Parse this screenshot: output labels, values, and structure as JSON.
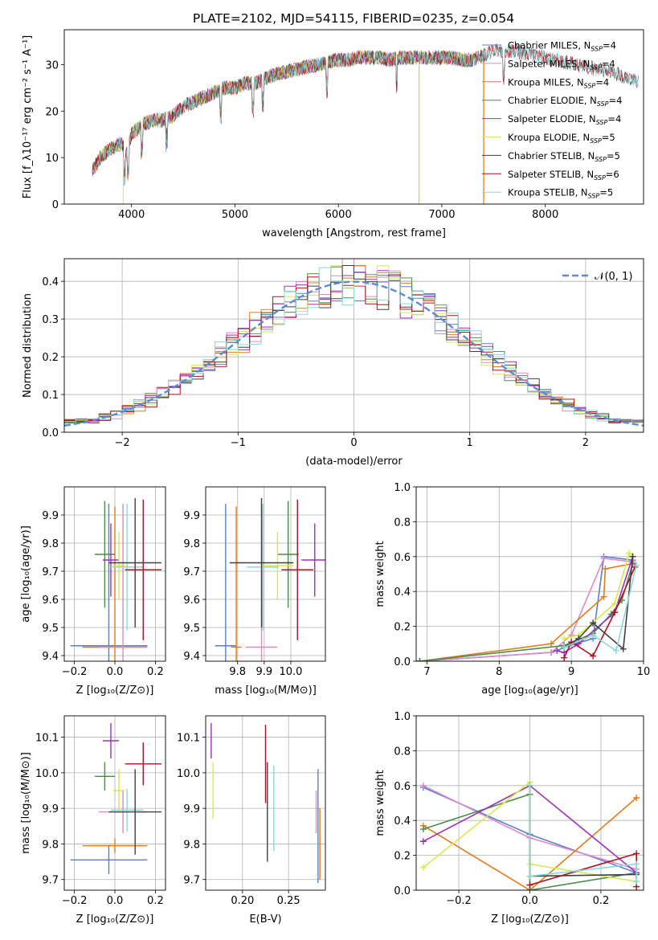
{
  "chart_data": [
    {
      "type": "line",
      "title": "PLATE=2102, MJD=54115, FIBERID=0235, z=0.054",
      "xlabel": "wavelength [Angstrom, rest frame]",
      "ylabel": "Flux [f_λ10⁻¹⁷ erg cm⁻² s⁻¹ A⁻¹]",
      "xlim": [
        3350,
        8950
      ],
      "ylim": [
        0,
        37.5
      ],
      "xticks": [
        4000,
        5000,
        6000,
        7000,
        8000
      ],
      "yticks": [
        0,
        10,
        20,
        30
      ],
      "legend_position": "right",
      "spectrum_trend": {
        "x": [
          3620,
          3700,
          3800,
          3900,
          3950,
          4000,
          4100,
          4200,
          4300,
          4400,
          4500,
          4600,
          4700,
          4800,
          4900,
          5000,
          5100,
          5200,
          5300,
          5400,
          5500,
          5600,
          5700,
          5800,
          5900,
          6000,
          6100,
          6200,
          6300,
          6400,
          6500,
          6600,
          6700,
          6800,
          6900,
          7000,
          7100,
          7200,
          7300,
          7400,
          7500,
          7600,
          7700,
          7800,
          7900,
          8000,
          8100,
          8200,
          8300,
          8400,
          8500,
          8600,
          8700,
          8800,
          8900
        ],
        "y": [
          7,
          10,
          12,
          13,
          11,
          15,
          17,
          18,
          18,
          19,
          21,
          22,
          23,
          24,
          25,
          25,
          26,
          26,
          27,
          28,
          28.5,
          29,
          29.5,
          30,
          30.5,
          31,
          31,
          31.5,
          31.5,
          31.5,
          31,
          31.5,
          31.5,
          31.5,
          31.5,
          31.5,
          31.5,
          31,
          31,
          32,
          33,
          33,
          33,
          32.5,
          32,
          31.5,
          31,
          30.5,
          30,
          29.5,
          29,
          28.5,
          28,
          27,
          26.5
        ]
      },
      "series": [
        {
          "name": "Chabrier MILES",
          "nssp": 4,
          "color": "#5b7fd0"
        },
        {
          "name": "Salpeter MILES",
          "nssp": 4,
          "color": "#dd88c8"
        },
        {
          "name": "Kroupa MILES",
          "nssp": 4,
          "color": "#e07b1a"
        },
        {
          "name": "Chabrier ELODIE",
          "nssp": 4,
          "color": "#4a8c4a"
        },
        {
          "name": "Salpeter ELODIE",
          "nssp": 4,
          "color": "#9c30b8"
        },
        {
          "name": "Kroupa ELODIE",
          "nssp": 5,
          "color": "#d8e84a"
        },
        {
          "name": "Chabrier STELIB",
          "nssp": 5,
          "color": "#404040"
        },
        {
          "name": "Salpeter STELIB",
          "nssp": 6,
          "color": "#b01020"
        },
        {
          "name": "Kroupa STELIB",
          "nssp": 5,
          "color": "#8ad8d8"
        }
      ]
    },
    {
      "type": "step",
      "xlabel": "(data-model)/error",
      "ylabel": "Normed distribution",
      "xlim": [
        -2.5,
        2.5
      ],
      "ylim": [
        0,
        0.46
      ],
      "xticks": [
        -2,
        -1,
        0,
        1,
        2
      ],
      "yticks": [
        0.0,
        0.1,
        0.2,
        0.3,
        0.4
      ],
      "grid": true,
      "legend": {
        "label": "𝒩(0, 1)",
        "position": "upper right"
      },
      "reference_curve": "standard normal density"
    },
    {
      "type": "errorbar",
      "xlabel": "Z [log₁₀(Z/Z⊙)]",
      "ylabel": "age  [log₁₀(age/yr)]",
      "xlim": [
        -0.25,
        0.25
      ],
      "ylim": [
        9.38,
        10.0
      ],
      "xticks": [
        -0.2,
        0.0,
        0.2
      ],
      "yticks": [
        9.4,
        9.5,
        9.6,
        9.7,
        9.8,
        9.9
      ],
      "grid": true,
      "points": [
        {
          "series": "Chabrier MILES",
          "x": -0.03,
          "y": 9.435,
          "xerr": 0.19,
          "yerr": 0.505
        },
        {
          "series": "Kroupa MILES",
          "x": 0.0,
          "y": 9.43,
          "xerr": 0.16,
          "yerr": 0.5
        },
        {
          "series": "Salpeter MILES",
          "x": 0.04,
          "y": 9.43,
          "xerr": 0.12,
          "yerr": 0.51
        },
        {
          "series": "Chabrier ELODIE",
          "x": -0.05,
          "y": 9.76,
          "xerr": 0.05,
          "yerr": 0.19
        },
        {
          "series": "Salpeter ELODIE",
          "x": -0.02,
          "y": 9.74,
          "xerr": 0.04,
          "yerr": 0.13
        },
        {
          "series": "Kroupa ELODIE",
          "x": 0.02,
          "y": 9.72,
          "xerr": 0.03,
          "yerr": 0.12
        },
        {
          "series": "Kroupa STELIB",
          "x": 0.06,
          "y": 9.715,
          "xerr": 0.08,
          "yerr": 0.225
        },
        {
          "series": "Chabrier STELIB",
          "x": 0.1,
          "y": 9.73,
          "xerr": 0.13,
          "yerr": 0.23
        },
        {
          "series": "Salpeter STELIB",
          "x": 0.14,
          "y": 9.705,
          "xerr": 0.09,
          "yerr": 0.25
        }
      ]
    },
    {
      "type": "errorbar",
      "xlabel": "mass [log₁₀(M/M⊙)]",
      "ylabel": "",
      "xlim": [
        9.68,
        10.13
      ],
      "ylim": [
        9.38,
        10.0
      ],
      "xticks": [
        9.8,
        9.9,
        10.0
      ],
      "yticks": [
        9.4,
        9.5,
        9.6,
        9.7,
        9.8,
        9.9
      ],
      "grid": true,
      "points": [
        {
          "series": "Chabrier MILES",
          "x": 9.755,
          "y": 9.435,
          "xerr": 0.04,
          "yerr": 0.505
        },
        {
          "series": "Kroupa MILES",
          "x": 9.795,
          "y": 9.43,
          "xerr": 0.02,
          "yerr": 0.5
        },
        {
          "series": "Salpeter MILES",
          "x": 9.89,
          "y": 9.43,
          "xerr": 0.06,
          "yerr": 0.51
        },
        {
          "series": "Chabrier ELODIE",
          "x": 9.99,
          "y": 9.76,
          "xerr": 0.04,
          "yerr": 0.19
        },
        {
          "series": "Salpeter ELODIE",
          "x": 10.09,
          "y": 9.74,
          "xerr": 0.05,
          "yerr": 0.13
        },
        {
          "series": "Kroupa ELODIE",
          "x": 9.95,
          "y": 9.72,
          "xerr": 0.06,
          "yerr": 0.12
        },
        {
          "series": "Kroupa STELIB",
          "x": 9.895,
          "y": 9.715,
          "xerr": 0.06,
          "yerr": 0.225
        },
        {
          "series": "Chabrier STELIB",
          "x": 9.89,
          "y": 9.73,
          "xerr": 0.12,
          "yerr": 0.23
        },
        {
          "series": "Salpeter STELIB",
          "x": 10.025,
          "y": 9.705,
          "xerr": 0.06,
          "yerr": 0.25
        }
      ]
    },
    {
      "type": "line",
      "xlabel": "age  [log₁₀(age/yr)]",
      "ylabel": "mass weight",
      "xlim": [
        6.85,
        10.0
      ],
      "ylim": [
        0,
        1.0
      ],
      "xticks": [
        7,
        8,
        9,
        10
      ],
      "yticks": [
        0.0,
        0.2,
        0.4,
        0.6,
        0.8,
        1.0
      ],
      "grid": true,
      "series": [
        {
          "name": "Chabrier MILES",
          "x": [
            6.9,
            8.72,
            9.05,
            9.3,
            9.45,
            9.85
          ],
          "y": [
            0.0,
            0.05,
            0.1,
            0.13,
            0.6,
            0.58
          ]
        },
        {
          "name": "Salpeter MILES",
          "x": [
            6.9,
            8.72,
            9.0,
            9.45,
            9.85
          ],
          "y": [
            0.0,
            0.05,
            0.15,
            0.59,
            0.57
          ]
        },
        {
          "name": "Kroupa MILES",
          "x": [
            6.9,
            8.72,
            9.45,
            9.47,
            9.85
          ],
          "y": [
            0.0,
            0.1,
            0.37,
            0.53,
            0.56
          ]
        },
        {
          "name": "Chabrier ELODIE",
          "x": [
            6.9,
            8.9,
            9.3,
            9.55,
            9.7,
            9.85
          ],
          "y": [
            0.0,
            0.09,
            0.16,
            0.27,
            0.35,
            0.56
          ]
        },
        {
          "name": "Salpeter ELODIE",
          "x": [
            8.8,
            8.9,
            9.1,
            9.6,
            9.85
          ],
          "y": [
            0.06,
            0.05,
            0.1,
            0.28,
            0.6
          ]
        },
        {
          "name": "Kroupa ELODIE",
          "x": [
            8.9,
            9.1,
            9.6,
            9.8,
            9.85
          ],
          "y": [
            0.13,
            0.15,
            0.33,
            0.62,
            0.6
          ]
        },
        {
          "name": "Chabrier STELIB",
          "x": [
            8.9,
            9.1,
            9.3,
            9.72,
            9.85
          ],
          "y": [
            0.08,
            0.13,
            0.22,
            0.07,
            0.6
          ]
        },
        {
          "name": "Salpeter STELIB",
          "x": [
            8.9,
            9.0,
            9.3,
            9.6,
            9.88
          ],
          "y": [
            0.02,
            0.11,
            0.03,
            0.28,
            0.54
          ]
        },
        {
          "name": "Kroupa STELIB",
          "x": [
            8.9,
            9.3,
            9.62,
            9.9
          ],
          "y": [
            0.08,
            0.15,
            0.06,
            0.55
          ]
        }
      ]
    },
    {
      "type": "errorbar",
      "xlabel": "Z [log₁₀(Z/Z⊙)]",
      "ylabel": "mass [log₁₀(M/M⊙)]",
      "xlim": [
        -0.25,
        0.25
      ],
      "ylim": [
        9.67,
        10.16
      ],
      "xticks": [
        -0.2,
        0.0,
        0.2
      ],
      "yticks": [
        9.7,
        9.8,
        9.9,
        10.0,
        10.1
      ],
      "grid": true,
      "points": [
        {
          "series": "Chabrier MILES",
          "x": -0.03,
          "y": 9.755,
          "xerr": 0.19,
          "yerr": 0.04
        },
        {
          "series": "Kroupa MILES",
          "x": 0.0,
          "y": 9.795,
          "xerr": 0.16,
          "yerr": 0.02
        },
        {
          "series": "Salpeter MILES",
          "x": 0.04,
          "y": 9.89,
          "xerr": 0.12,
          "yerr": 0.06
        },
        {
          "series": "Chabrier ELODIE",
          "x": -0.05,
          "y": 9.99,
          "xerr": 0.05,
          "yerr": 0.04
        },
        {
          "series": "Salpeter ELODIE",
          "x": -0.02,
          "y": 10.09,
          "xerr": 0.04,
          "yerr": 0.05
        },
        {
          "series": "Kroupa ELODIE",
          "x": 0.02,
          "y": 9.95,
          "xerr": 0.03,
          "yerr": 0.06
        },
        {
          "series": "Kroupa STELIB",
          "x": 0.06,
          "y": 9.895,
          "xerr": 0.08,
          "yerr": 0.06
        },
        {
          "series": "Chabrier STELIB",
          "x": 0.1,
          "y": 9.89,
          "xerr": 0.13,
          "yerr": 0.12
        },
        {
          "series": "Salpeter STELIB",
          "x": 0.14,
          "y": 10.025,
          "xerr": 0.09,
          "yerr": 0.06
        }
      ]
    },
    {
      "type": "errorbar",
      "xlabel": "E(B-V)",
      "ylabel": "",
      "xlim": [
        0.16,
        0.29
      ],
      "ylim": [
        9.67,
        10.16
      ],
      "xticks": [
        0.2,
        0.25
      ],
      "yticks": [
        9.7,
        9.8,
        9.9,
        10.0,
        10.1
      ],
      "grid": true,
      "points": [
        {
          "series": "Salpeter ELODIE",
          "x": 0.166,
          "y": 10.09,
          "yerr": 0.05
        },
        {
          "series": "Kroupa ELODIE",
          "x": 0.168,
          "y": 9.95,
          "yerr": 0.08
        },
        {
          "series": "Salpeter STELIB",
          "x": 0.225,
          "y": 10.025,
          "yerr": 0.11
        },
        {
          "series": "Chabrier STELIB",
          "x": 0.227,
          "y": 9.89,
          "yerr": 0.14
        },
        {
          "series": "Kroupa STELIB",
          "x": 0.234,
          "y": 9.9,
          "yerr": 0.12
        },
        {
          "series": "Salpeter MILES",
          "x": 0.28,
          "y": 9.89,
          "yerr": 0.06
        },
        {
          "series": "Chabrier MILES",
          "x": 0.282,
          "y": 9.85,
          "yerr": 0.16
        },
        {
          "series": "Kroupa MILES",
          "x": 0.284,
          "y": 9.8,
          "yerr": 0.1
        }
      ]
    },
    {
      "type": "line",
      "xlabel": "Z [log₁₀(Z/Z⊙)]",
      "ylabel": "mass weight",
      "xlim": [
        -0.32,
        0.32
      ],
      "ylim": [
        0,
        1.0
      ],
      "xticks": [
        -0.2,
        0.0,
        0.2
      ],
      "yticks": [
        0.0,
        0.2,
        0.4,
        0.6,
        0.8,
        1.0
      ],
      "grid": true,
      "series": [
        {
          "name": "Chabrier MILES",
          "x": [
            -0.3,
            0.0,
            0.3
          ],
          "y": [
            0.59,
            0.32,
            0.1
          ]
        },
        {
          "name": "Salpeter MILES",
          "x": [
            -0.3,
            0.0,
            0.3
          ],
          "y": [
            0.6,
            0.3,
            0.12
          ]
        },
        {
          "name": "Kroupa MILES",
          "x": [
            -0.3,
            0.0,
            0.3
          ],
          "y": [
            0.37,
            0.0,
            0.53
          ]
        },
        {
          "name": "Chabrier ELODIE",
          "x": [
            -0.3,
            0.0,
            0.0,
            0.3
          ],
          "y": [
            0.35,
            0.55,
            0.0,
            0.1
          ]
        },
        {
          "name": "Salpeter ELODIE",
          "x": [
            -0.3,
            0.0,
            0.3
          ],
          "y": [
            0.28,
            0.6,
            0.1
          ]
        },
        {
          "name": "Kroupa ELODIE",
          "x": [
            -0.3,
            0.0,
            0.0,
            0.3
          ],
          "y": [
            0.13,
            0.62,
            0.15,
            0.05
          ]
        },
        {
          "name": "Chabrier STELIB",
          "x": [
            0.0,
            0.0,
            0.3
          ],
          "y": [
            0.6,
            0.08,
            0.09
          ]
        },
        {
          "name": "Salpeter STELIB",
          "x": [
            0.0,
            0.3,
            0.3
          ],
          "y": [
            0.03,
            0.21,
            0.02
          ]
        },
        {
          "name": "Kroupa STELIB",
          "x": [
            0.0,
            0.0,
            0.3,
            0.3
          ],
          "y": [
            0.6,
            0.08,
            0.15,
            0.05
          ]
        }
      ]
    }
  ]
}
